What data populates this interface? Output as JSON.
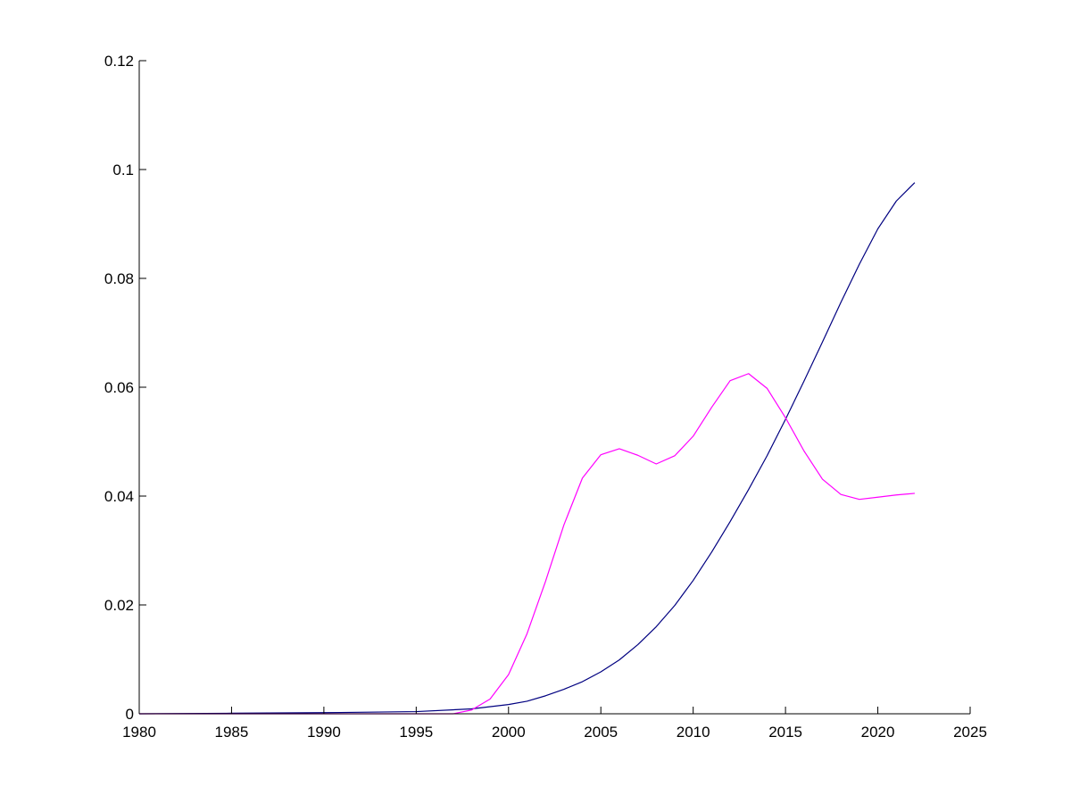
{
  "chart_data": {
    "type": "line",
    "title": "",
    "xlabel": "",
    "ylabel": "",
    "xlim": [
      1980,
      2025
    ],
    "ylim": [
      0,
      0.12
    ],
    "grid": false,
    "x_ticks": [
      "1980",
      "1985",
      "1990",
      "1995",
      "2000",
      "2005",
      "2010",
      "2015",
      "2020",
      "2025"
    ],
    "y_ticks": [
      "0",
      "0.02",
      "0.04",
      "0.06",
      "0.08",
      "0.1",
      "0.12"
    ],
    "series": [
      {
        "color": "#000080",
        "x": [
          1980,
          1985,
          1990,
          1995,
          1998,
          2000,
          2001,
          2002,
          2003,
          2004,
          2005,
          2006,
          2007,
          2008,
          2009,
          2010,
          2011,
          2012,
          2013,
          2014,
          2015,
          2016,
          2017,
          2018,
          2019,
          2020,
          2021,
          2022
        ],
        "values": [
          0.0,
          0.0001,
          0.0002,
          0.0004,
          0.0009,
          0.0017,
          0.0023,
          0.0033,
          0.0045,
          0.0059,
          0.0077,
          0.0099,
          0.0127,
          0.016,
          0.0199,
          0.0245,
          0.0297,
          0.0353,
          0.0412,
          0.0474,
          0.0541,
          0.0611,
          0.0683,
          0.0756,
          0.0826,
          0.0891,
          0.0942,
          0.0976
        ]
      },
      {
        "color": "#ff00ff",
        "x": [
          1980,
          1997,
          1998,
          1999,
          2000,
          2001,
          2002,
          2003,
          2004,
          2005,
          2006,
          2007,
          2008,
          2009,
          2010,
          2011,
          2012,
          2013,
          2014,
          2015,
          2016,
          2017,
          2018,
          2019,
          2020,
          2021,
          2022
        ],
        "values": [
          0.0,
          0.0,
          0.0007,
          0.0027,
          0.0072,
          0.0147,
          0.0243,
          0.0347,
          0.0433,
          0.0476,
          0.0487,
          0.0475,
          0.0459,
          0.0474,
          0.051,
          0.0563,
          0.0612,
          0.0625,
          0.0598,
          0.0544,
          0.0483,
          0.0431,
          0.0403,
          0.0394,
          0.0398,
          0.0402,
          0.0405
        ]
      }
    ]
  }
}
